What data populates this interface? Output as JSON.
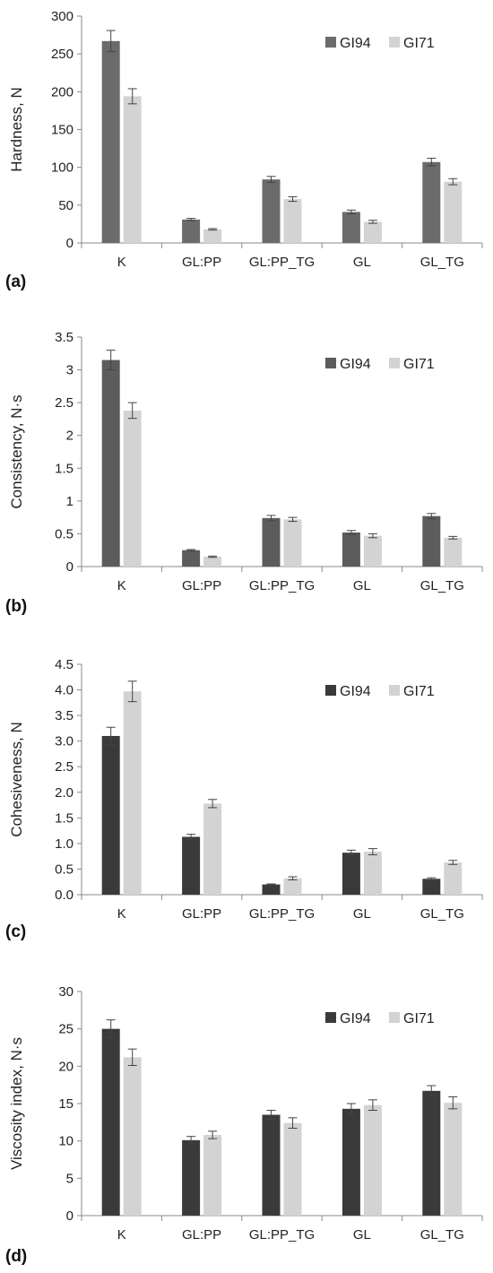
{
  "chart_data": [
    {
      "type": "bar",
      "panel_label": "(a)",
      "ylabel": "Hardness, N",
      "xlabel": "",
      "categories": [
        "K",
        "GL:PP",
        "GL:PP_TG",
        "GL",
        "GL_TG"
      ],
      "ylim": [
        0,
        300
      ],
      "yticks": [
        "0",
        "50",
        "100",
        "150",
        "200",
        "250",
        "300"
      ],
      "legend_position": "top-right",
      "series": [
        {
          "name": "GI94",
          "color": "#6b6b6b",
          "values": [
            267,
            31,
            84,
            41,
            107
          ],
          "errors": [
            14,
            1.5,
            4,
            2.5,
            5
          ]
        },
        {
          "name": "GI71",
          "color": "#d3d3d3",
          "values": [
            194,
            18,
            58,
            28,
            81
          ],
          "errors": [
            10,
            1,
            3,
            2,
            4
          ]
        }
      ]
    },
    {
      "type": "bar",
      "panel_label": "(b)",
      "ylabel": "Consistency, N·s",
      "xlabel": "",
      "categories": [
        "K",
        "GL:PP",
        "GL:PP_TG",
        "GL",
        "GL_TG"
      ],
      "ylim": [
        0,
        3.5
      ],
      "yticks": [
        "0",
        "0.5",
        "1",
        "1.5",
        "2",
        "2.5",
        "3",
        "3.5"
      ],
      "legend_position": "top-right",
      "series": [
        {
          "name": "GI94",
          "color": "#5c5c5c",
          "values": [
            3.15,
            0.25,
            0.74,
            0.52,
            0.77
          ],
          "errors": [
            0.15,
            0.01,
            0.04,
            0.03,
            0.04
          ]
        },
        {
          "name": "GI71",
          "color": "#d3d3d3",
          "values": [
            2.38,
            0.15,
            0.72,
            0.47,
            0.44
          ],
          "errors": [
            0.12,
            0.01,
            0.03,
            0.03,
            0.02
          ]
        }
      ]
    },
    {
      "type": "bar",
      "panel_label": "(c)",
      "ylabel": "Cohesiveness, N",
      "xlabel": "",
      "categories": [
        "K",
        "GL:PP",
        "GL:PP_TG",
        "GL",
        "GL_TG"
      ],
      "ylim": [
        0,
        4.5
      ],
      "yticks": [
        "0.0",
        "0.5",
        "1.0",
        "1.5",
        "2.0",
        "2.5",
        "3.0",
        "3.5",
        "4.0",
        "4.5"
      ],
      "legend_position": "top-right",
      "series": [
        {
          "name": "GI94",
          "color": "#3a3a3a",
          "values": [
            3.1,
            1.13,
            0.2,
            0.82,
            0.31
          ],
          "errors": [
            0.17,
            0.05,
            0.01,
            0.05,
            0.02
          ]
        },
        {
          "name": "GI71",
          "color": "#d3d3d3",
          "values": [
            3.97,
            1.78,
            0.32,
            0.84,
            0.63
          ],
          "errors": [
            0.2,
            0.08,
            0.03,
            0.06,
            0.04
          ]
        }
      ]
    },
    {
      "type": "bar",
      "panel_label": "(d)",
      "ylabel": "Viscosity index, N·s",
      "xlabel": "",
      "categories": [
        "K",
        "GL:PP",
        "GL:PP_TG",
        "GL",
        "GL_TG"
      ],
      "ylim": [
        0,
        30
      ],
      "yticks": [
        "0",
        "5",
        "10",
        "15",
        "20",
        "25",
        "30"
      ],
      "legend_position": "top-right",
      "series": [
        {
          "name": "GI94",
          "color": "#3a3a3a",
          "values": [
            25.0,
            10.1,
            13.5,
            14.3,
            16.7
          ],
          "errors": [
            1.2,
            0.5,
            0.6,
            0.7,
            0.7
          ]
        },
        {
          "name": "GI71",
          "color": "#d3d3d3",
          "values": [
            21.2,
            10.8,
            12.4,
            14.8,
            15.1
          ],
          "errors": [
            1.1,
            0.5,
            0.7,
            0.7,
            0.8
          ]
        }
      ]
    }
  ]
}
